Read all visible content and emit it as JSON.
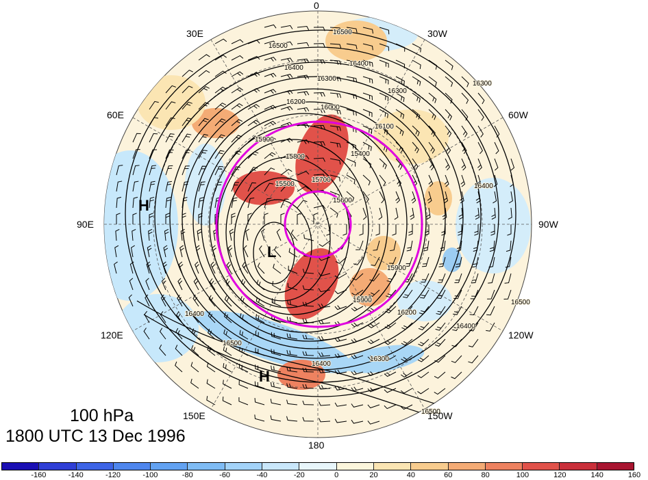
{
  "caption": {
    "level": "100 hPa",
    "time": "1800 UTC 13 Dec 1996"
  },
  "longitude_labels": {
    "lon_0": "0",
    "lon_30w": "30W",
    "lon_60w": "60W",
    "lon_90w": "90W",
    "lon_120w": "120W",
    "lon_150w": "150W",
    "lon_180": "180",
    "lon_150e": "150E",
    "lon_120e": "120E",
    "lon_90e": "90E",
    "lon_60e": "60E",
    "lon_30e": "30E"
  },
  "pressure_centers": {
    "low": "L",
    "high_west": "H",
    "high_south": "H"
  },
  "contour_labels": [
    "16500",
    "16500",
    "16400",
    "16400",
    "16300",
    "16300",
    "16200",
    "16100",
    "16000",
    "15900",
    "15800",
    "15700",
    "15600",
    "15500",
    "15400",
    "16000",
    "15900",
    "16200",
    "16400",
    "16500",
    "16300",
    "16400",
    "16500",
    "16400",
    "16500",
    "16400",
    "16300",
    "15900"
  ],
  "colorbar": {
    "tick_labels": [
      "-160",
      "-140",
      "-120",
      "-100",
      "-80",
      "-60",
      "-40",
      "-20",
      "0",
      "20",
      "40",
      "60",
      "80",
      "100",
      "120",
      "140",
      "160"
    ],
    "colors": [
      "#1a0fb4",
      "#2f3fd6",
      "#3d64e6",
      "#4e86ee",
      "#62a2f2",
      "#7fbcf5",
      "#a3d3f9",
      "#c9e7fb",
      "#e8f6fb",
      "#fcf6dc",
      "#fbe5b3",
      "#f8cc8e",
      "#f4ab75",
      "#ee8260",
      "#e1524a",
      "#c92f3a",
      "#a81530"
    ]
  },
  "colors": {
    "jet_marker": "#e000e0",
    "contour": "#000000"
  }
}
